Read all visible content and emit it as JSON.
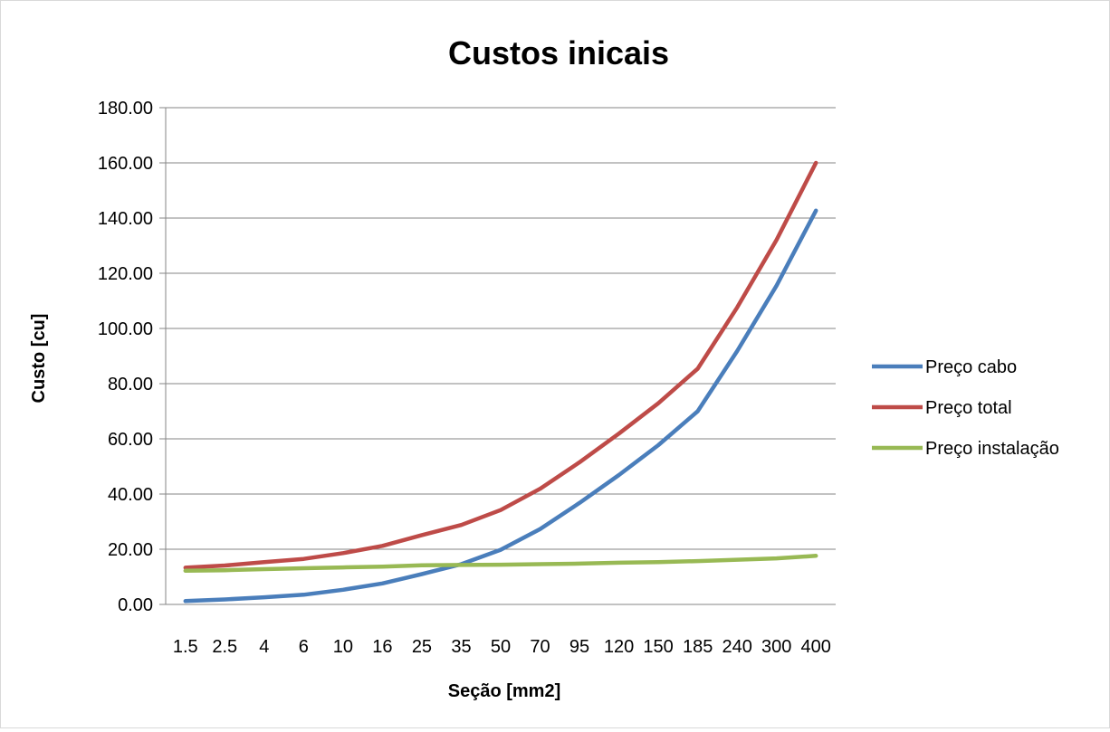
{
  "chart_data": {
    "type": "line",
    "title": "Custos inicais",
    "xlabel": "Seção [mm2]",
    "ylabel": "Custo [cu]",
    "categories": [
      "1.5",
      "2.5",
      "4",
      "6",
      "10",
      "16",
      "25",
      "35",
      "50",
      "70",
      "95",
      "120",
      "150",
      "185",
      "240",
      "300",
      "400"
    ],
    "ylim": [
      0,
      180
    ],
    "yticks": [
      "0.00",
      "20.00",
      "40.00",
      "60.00",
      "80.00",
      "100.00",
      "120.00",
      "140.00",
      "160.00",
      "180.00"
    ],
    "grid": true,
    "legend_position": "right",
    "series": [
      {
        "name": "Preço cabo",
        "color": "#4a7ebb",
        "values": [
          1.2,
          1.8,
          2.6,
          3.5,
          5.3,
          7.6,
          11.0,
          14.6,
          19.8,
          27.3,
          36.8,
          46.9,
          57.7,
          70.0,
          91.8,
          115.5,
          142.7
        ]
      },
      {
        "name": "Preço total",
        "color": "#be4b48",
        "values": [
          13.3,
          14.1,
          15.3,
          16.5,
          18.6,
          21.2,
          25.1,
          28.8,
          34.2,
          41.9,
          51.5,
          61.9,
          72.9,
          85.4,
          107.6,
          132.1,
          160.0
        ]
      },
      {
        "name": "Preço instalação",
        "color": "#98b954",
        "values": [
          12.2,
          12.4,
          12.8,
          13.1,
          13.4,
          13.7,
          14.2,
          14.3,
          14.4,
          14.6,
          14.8,
          15.1,
          15.3,
          15.7,
          16.2,
          16.7,
          17.6
        ]
      }
    ]
  }
}
